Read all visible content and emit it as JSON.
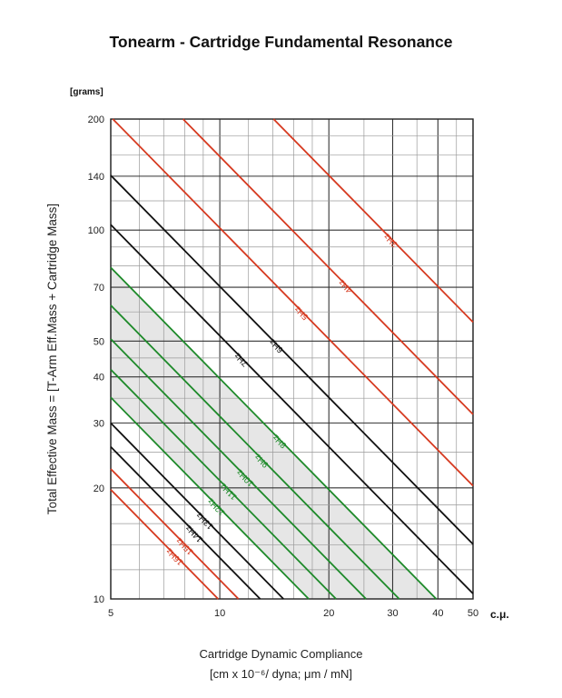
{
  "chart_data": {
    "type": "line",
    "title": "Tonearm - Cartridge Fundamental Resonance",
    "ylabel": "Total Effective Mass = [T-Arm Eff.Mass + Cartridge Mass]",
    "yunit": "[grams]",
    "xunit": "c.μ.",
    "xlabel_line1": "Cartridge Dynamic Compliance",
    "xlabel_line2": "[cm x 10⁻⁶/ dyna; μm / mN]",
    "x_scale": "log",
    "y_scale": "log",
    "xlim": [
      5,
      50
    ],
    "ylim": [
      10,
      200
    ],
    "x_ticks": [
      "5",
      "10",
      "20",
      "30",
      "40",
      "50"
    ],
    "y_ticks": [
      "10",
      "20",
      "30",
      "40",
      "50",
      "70",
      "100",
      "140",
      "200"
    ],
    "x_grid": [
      5,
      6,
      7,
      8,
      9,
      10,
      12,
      14,
      16,
      18,
      20,
      25,
      30,
      35,
      40,
      45,
      50
    ],
    "y_grid": [
      10,
      12,
      14,
      16,
      18,
      20,
      25,
      30,
      35,
      40,
      45,
      50,
      60,
      70,
      80,
      90,
      100,
      120,
      140,
      160,
      180,
      200
    ],
    "grid": true,
    "shaded_region": {
      "from_hz": 12,
      "to_hz": 8,
      "color": "#e6e6e6"
    },
    "series_formula": "mass_g = 25330 / (f_hz^2 * compliance_cu)",
    "series": [
      {
        "name": "3Hz",
        "frequency": 3,
        "color": "#d63a20",
        "label_at_x": 30
      },
      {
        "name": "4Hz",
        "frequency": 4,
        "color": "#d63a20",
        "label_at_x": 22.5
      },
      {
        "name": "5Hz",
        "frequency": 5,
        "color": "#d63a20",
        "label_at_x": 17
      },
      {
        "name": "6Hz",
        "frequency": 6,
        "color": "#111111",
        "label_at_x": 14.5
      },
      {
        "name": "7Hz",
        "frequency": 7,
        "color": "#111111",
        "label_at_x": 11.6
      },
      {
        "name": "8Hz",
        "frequency": 8,
        "color": "#1e8a2a",
        "label_at_x": 14.8
      },
      {
        "name": "9Hz",
        "frequency": 9,
        "color": "#1e8a2a",
        "label_at_x": 13.2
      },
      {
        "name": "10Hz",
        "frequency": 10,
        "color": "#1e8a2a",
        "label_at_x": 11.9
      },
      {
        "name": "11Hz",
        "frequency": 11,
        "color": "#1e8a2a",
        "label_at_x": 10.7
      },
      {
        "name": "12Hz",
        "frequency": 12,
        "color": "#1e8a2a",
        "label_at_x": 9.9
      },
      {
        "name": "13Hz",
        "frequency": 13,
        "color": "#111111",
        "label_at_x": 9.2
      },
      {
        "name": "14Hz",
        "frequency": 14,
        "color": "#111111",
        "label_at_x": 8.6
      },
      {
        "name": "15Hz",
        "frequency": 15,
        "color": "#d63a20",
        "label_at_x": 8.1
      },
      {
        "name": "16Hz",
        "frequency": 16,
        "color": "#d63a20",
        "label_at_x": 7.6
      }
    ]
  }
}
